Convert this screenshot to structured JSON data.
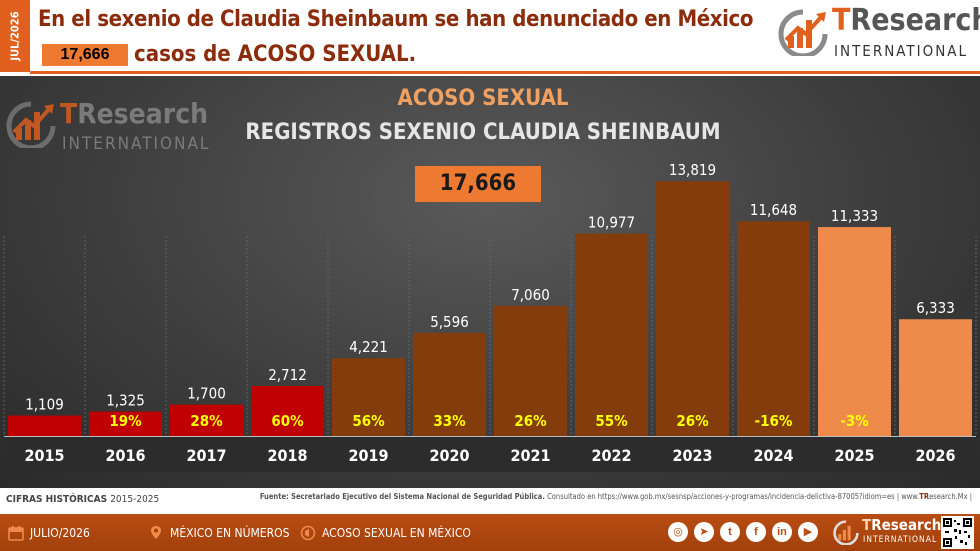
{
  "header": {
    "date_label": "JUL/2026",
    "headline_line1": "En el sexenio de Claudia Sheinbaum se han denunciado en México",
    "headline_count": "17,666",
    "headline_line2": "casos de ACOSO SEXUAL."
  },
  "brand": {
    "name_t": "T",
    "name_rest": "Research",
    "tagline": "INTERNATIONAL"
  },
  "colors": {
    "accent": "#e2601d",
    "bar_red": "#c00000",
    "bar_brown": "#843c0c",
    "bar_light": "#ee8a4a",
    "pct_yellow": "#ffff00"
  },
  "chart_data": {
    "type": "bar",
    "title": "ACOSO SEXUAL",
    "subtitle": "REGISTROS SEXENIO CLAUDIA SHEINBAUM",
    "total_label": "17,666",
    "categories": [
      "2015",
      "2016",
      "2017",
      "2018",
      "2019",
      "2020",
      "2021",
      "2022",
      "2023",
      "2024",
      "2025",
      "2026"
    ],
    "values": [
      1109,
      1325,
      1700,
      2712,
      4221,
      5596,
      7060,
      10977,
      13819,
      11648,
      11333,
      6333
    ],
    "value_labels": [
      "1,109",
      "1,325",
      "1,700",
      "2,712",
      "4,221",
      "5,596",
      "7,060",
      "10,977",
      "13,819",
      "11,648",
      "11,333",
      "6,333"
    ],
    "pct_change_labels": [
      "",
      "19%",
      "28%",
      "60%",
      "56%",
      "33%",
      "26%",
      "55%",
      "26%",
      "-16%",
      "-3%",
      ""
    ],
    "bar_colors": [
      "red",
      "red",
      "red",
      "red",
      "brown",
      "brown",
      "brown",
      "brown",
      "brown",
      "brown",
      "light",
      "light"
    ],
    "ylim": [
      0,
      16000
    ],
    "grid": false
  },
  "source": {
    "historic_label": "CIFRAS HISTÓRICAS",
    "historic_years": "2015-2025",
    "text_prefix": "Fuente: Secretariado Ejecutivo del Sistema Nacional de Seguridad Pública.",
    "text_consult": " Consultado en https://www.gob.mx/sesnsp/acciones-y-programas/incidencia-delictiva-87005?idiom=es | www.",
    "text_brand": "TR",
    "text_suffix": "esearch.Mx |"
  },
  "footer": {
    "date": "JULIO/2026",
    "section": "MÉXICO EN NÚMEROS",
    "topic": "ACOSO SEXUAL EN MÉXICO",
    "socials": [
      "ig",
      "t",
      "tw",
      "f",
      "in",
      "yt"
    ],
    "icons": [
      "calendar-icon",
      "map-pin-icon",
      "megaphone-icon"
    ]
  }
}
